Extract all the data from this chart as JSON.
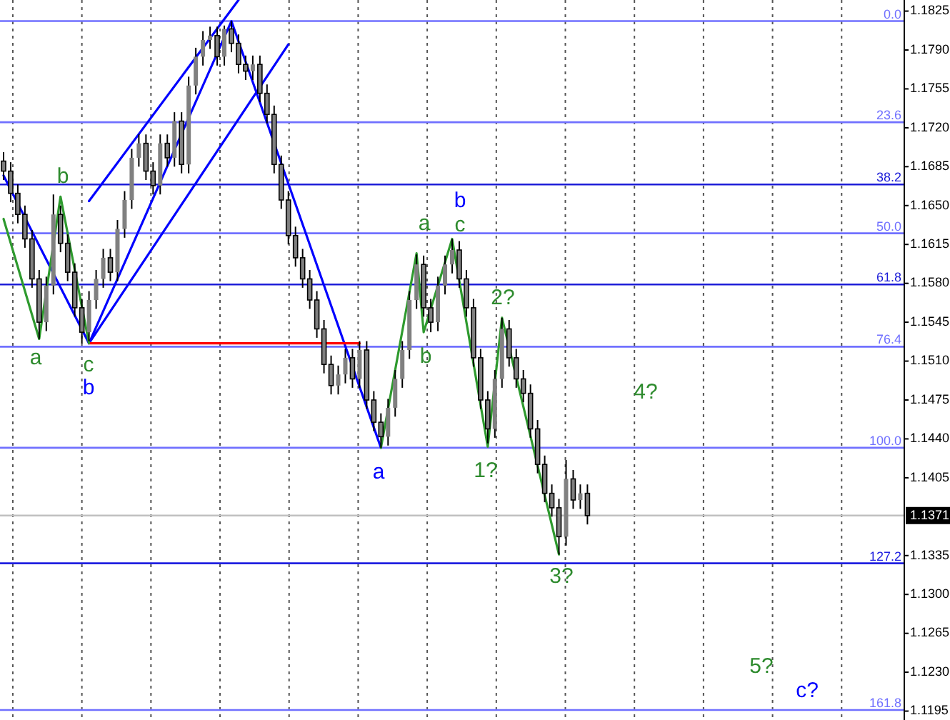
{
  "chart_data": {
    "type": "candlestick",
    "color": "#808080",
    "tick_labels": "y",
    "ylim": [
      1.1187,
      1.1835
    ],
    "yticks": [
      {
        "value": 1.1825,
        "label": "1.1825"
      },
      {
        "value": 1.179,
        "label": "1.1790"
      },
      {
        "value": 1.1755,
        "label": "1.1755"
      },
      {
        "value": 1.172,
        "label": "1.1720"
      },
      {
        "value": 1.1685,
        "label": "1.1685"
      },
      {
        "value": 1.165,
        "label": "1.1650"
      },
      {
        "value": 1.1615,
        "label": "1.1615"
      },
      {
        "value": 1.158,
        "label": "1.1580"
      },
      {
        "value": 1.1545,
        "label": "1.1545"
      },
      {
        "value": 1.151,
        "label": "1.1510"
      },
      {
        "value": 1.1475,
        "label": "1.1475"
      },
      {
        "value": 1.144,
        "label": "1.1440"
      },
      {
        "value": 1.1405,
        "label": "1.1405"
      },
      {
        "value": 1.1335,
        "label": "1.1335"
      },
      {
        "value": 1.13,
        "label": "1.1300"
      },
      {
        "value": 1.1265,
        "label": "1.1265"
      },
      {
        "value": 1.123,
        "label": "1.1230"
      },
      {
        "value": 1.1195,
        "label": "1.1195"
      }
    ],
    "grid": "x",
    "categories": [
      null,
      null,
      null,
      null,
      null,
      null,
      null,
      null,
      null,
      null,
      null,
      null,
      null,
      null,
      null,
      null,
      null,
      null,
      null,
      null,
      null,
      null,
      null,
      null,
      null,
      null,
      null,
      null,
      null,
      null,
      null,
      null,
      null,
      null,
      null,
      null,
      null,
      null,
      null,
      null,
      null,
      null,
      null,
      null,
      null,
      null,
      null,
      null,
      null,
      null,
      null,
      null,
      null,
      null,
      null,
      null,
      null,
      null,
      null,
      null,
      null,
      null,
      null,
      null,
      null,
      null,
      null,
      null,
      null,
      null,
      null,
      null,
      null,
      null,
      null,
      null,
      null,
      null,
      null,
      null,
      null,
      null,
      null,
      null,
      null,
      null,
      null,
      null,
      null,
      null,
      null,
      null,
      null,
      null,
      null,
      null,
      null,
      null,
      null,
      null,
      null,
      null,
      null,
      null,
      null,
      null,
      null,
      null,
      null,
      null,
      null,
      null,
      null,
      null,
      null,
      null,
      null,
      null,
      null,
      null,
      null,
      null,
      null,
      null,
      null,
      null,
      null
    ],
    "ohlc": [
      [
        1.169,
        1.1698,
        1.1673,
        1.1681
      ],
      [
        1.1681,
        1.1689,
        1.1653,
        1.1661
      ],
      [
        1.1661,
        1.1669,
        1.1634,
        1.1642
      ],
      [
        1.1642,
        1.165,
        1.1612,
        1.162
      ],
      [
        1.162,
        1.1628,
        1.1576,
        1.1584
      ],
      [
        1.1584,
        1.1592,
        1.153,
        1.1545
      ],
      [
        1.1545,
        1.1586,
        1.1537,
        1.1578
      ],
      [
        1.1578,
        1.166,
        1.157,
        1.1642
      ],
      [
        1.1642,
        1.165,
        1.1608,
        1.1616
      ],
      [
        1.1616,
        1.1624,
        1.1582,
        1.159
      ],
      [
        1.159,
        1.1598,
        1.155,
        1.1558
      ],
      [
        1.1558,
        1.1566,
        1.1526,
        1.1536
      ],
      [
        1.1536,
        1.1573,
        1.1528,
        1.1565
      ],
      [
        1.1565,
        1.1592,
        1.1557,
        1.1584
      ],
      [
        1.1584,
        1.1611,
        1.1576,
        1.1603
      ],
      [
        1.1603,
        1.1611,
        1.1582,
        1.159
      ],
      [
        1.159,
        1.1637,
        1.1582,
        1.1629
      ],
      [
        1.1629,
        1.1663,
        1.1621,
        1.1655
      ],
      [
        1.1655,
        1.1701,
        1.1647,
        1.1693
      ],
      [
        1.1693,
        1.1714,
        1.1685,
        1.1706
      ],
      [
        1.1706,
        1.1714,
        1.1673,
        1.1681
      ],
      [
        1.1681,
        1.1689,
        1.166,
        1.1668
      ],
      [
        1.1668,
        1.1714,
        1.166,
        1.1706
      ],
      [
        1.1706,
        1.1714,
        1.1685,
        1.1693
      ],
      [
        1.1693,
        1.1734,
        1.1685,
        1.1726
      ],
      [
        1.1726,
        1.1734,
        1.1679,
        1.1687
      ],
      [
        1.1687,
        1.1766,
        1.1679,
        1.1758
      ],
      [
        1.1758,
        1.1792,
        1.175,
        1.1784
      ],
      [
        1.1784,
        1.1807,
        1.1776,
        1.1799
      ],
      [
        1.1799,
        1.1811,
        1.1791,
        1.1803
      ],
      [
        1.1803,
        1.1811,
        1.1776,
        1.1784
      ],
      [
        1.1784,
        1.1812,
        1.1776,
        1.1809
      ],
      [
        1.1809,
        1.1816,
        1.1788,
        1.1796
      ],
      [
        1.1796,
        1.1804,
        1.1769,
        1.1777
      ],
      [
        1.1777,
        1.1785,
        1.1763,
        1.1771
      ],
      [
        1.1771,
        1.1785,
        1.1763,
        1.1777
      ],
      [
        1.1777,
        1.1785,
        1.1743,
        1.1751
      ],
      [
        1.1751,
        1.1759,
        1.1724,
        1.1732
      ],
      [
        1.1732,
        1.174,
        1.1679,
        1.1687
      ],
      [
        1.1687,
        1.1695,
        1.1647,
        1.1655
      ],
      [
        1.1655,
        1.1663,
        1.1615,
        1.1623
      ],
      [
        1.1623,
        1.1631,
        1.1595,
        1.1603
      ],
      [
        1.1603,
        1.1611,
        1.1576,
        1.1584
      ],
      [
        1.1584,
        1.1592,
        1.1557,
        1.1565
      ],
      [
        1.1565,
        1.1573,
        1.1531,
        1.1539
      ],
      [
        1.1539,
        1.1547,
        1.1499,
        1.1507
      ],
      [
        1.1507,
        1.1515,
        1.148,
        1.1488
      ],
      [
        1.1488,
        1.1506,
        1.148,
        1.1498
      ],
      [
        1.1498,
        1.1521,
        1.149,
        1.1513
      ],
      [
        1.1513,
        1.1521,
        1.1486,
        1.1494
      ],
      [
        1.1494,
        1.1528,
        1.1486,
        1.152
      ],
      [
        1.152,
        1.1528,
        1.1467,
        1.1475
      ],
      [
        1.1475,
        1.1483,
        1.1447,
        1.1455
      ],
      [
        1.1455,
        1.1463,
        1.1432,
        1.1442
      ],
      [
        1.1442,
        1.1476,
        1.1434,
        1.1468
      ],
      [
        1.1468,
        1.1502,
        1.146,
        1.1494
      ],
      [
        1.1494,
        1.1528,
        1.1486,
        1.152
      ],
      [
        1.152,
        1.1573,
        1.1512,
        1.1565
      ],
      [
        1.1565,
        1.1606,
        1.1557,
        1.1597
      ],
      [
        1.1597,
        1.1605,
        1.155,
        1.1558
      ],
      [
        1.1558,
        1.1566,
        1.1536,
        1.1545
      ],
      [
        1.1545,
        1.1586,
        1.1537,
        1.1578
      ],
      [
        1.1578,
        1.1605,
        1.157,
        1.1597
      ],
      [
        1.1597,
        1.162,
        1.1589,
        1.161
      ],
      [
        1.161,
        1.1618,
        1.1576,
        1.1584
      ],
      [
        1.1584,
        1.1592,
        1.155,
        1.1558
      ],
      [
        1.1558,
        1.1566,
        1.1505,
        1.1513
      ],
      [
        1.1513,
        1.1521,
        1.1467,
        1.1475
      ],
      [
        1.1475,
        1.1483,
        1.1436,
        1.1449
      ],
      [
        1.1449,
        1.1502,
        1.1441,
        1.1494
      ],
      [
        1.1494,
        1.1549,
        1.1486,
        1.1539
      ],
      [
        1.1539,
        1.1547,
        1.1505,
        1.1513
      ],
      [
        1.1513,
        1.1521,
        1.1486,
        1.1494
      ],
      [
        1.1494,
        1.1502,
        1.1473,
        1.1481
      ],
      [
        1.1481,
        1.1489,
        1.1441,
        1.1449
      ],
      [
        1.1449,
        1.1457,
        1.1409,
        1.1417
      ],
      [
        1.1417,
        1.1425,
        1.1383,
        1.1391
      ],
      [
        1.1391,
        1.1399,
        1.137,
        1.1378
      ],
      [
        1.1378,
        1.1386,
        1.1336,
        1.1352
      ],
      [
        1.1352,
        1.1421,
        1.1344,
        1.1404
      ],
      [
        1.1404,
        1.1412,
        1.1377,
        1.1385
      ],
      [
        1.1385,
        1.1399,
        1.1377,
        1.1391
      ],
      [
        1.1391,
        1.1399,
        1.1363,
        1.1371
      ],
      null,
      null,
      null,
      null,
      null,
      null,
      null,
      null,
      null,
      null,
      null,
      null,
      null,
      null,
      null,
      null,
      null,
      null,
      null,
      null,
      null,
      null,
      null,
      null,
      null,
      null,
      null,
      null,
      null,
      null,
      null,
      null,
      null,
      null,
      null,
      null,
      null,
      null,
      null,
      null,
      null,
      null,
      null,
      null
    ],
    "series": [
      {
        "type": "line",
        "color": "#0000ff",
        "values": [
          1.1677,
          null,
          null,
          null,
          null,
          null,
          null,
          null,
          null,
          null,
          null,
          null,
          1.1526,
          null,
          null,
          null,
          null,
          null,
          null,
          null,
          null,
          null,
          null,
          null,
          null,
          null,
          null,
          null,
          null,
          null,
          null,
          null,
          1.1816,
          null,
          null,
          null,
          null,
          null,
          null,
          null,
          null,
          null,
          null,
          null,
          null,
          null,
          null,
          null,
          null,
          null,
          null,
          null,
          null,
          1.1432,
          null,
          null,
          null,
          null,
          null,
          null,
          null,
          null,
          null,
          null,
          null,
          null,
          null,
          null,
          null,
          null,
          null,
          null,
          null,
          null,
          null,
          null,
          null,
          null,
          null,
          null,
          null,
          null,
          null,
          null,
          null,
          null,
          null,
          null,
          null,
          null,
          null,
          null,
          null,
          null,
          null,
          null,
          null,
          null,
          null,
          null,
          null,
          null,
          null,
          null,
          null,
          null,
          null,
          null,
          null,
          null,
          null,
          null,
          null,
          null,
          null,
          null,
          null,
          null,
          null,
          null,
          null,
          null,
          null,
          null,
          null,
          null,
          null
        ]
      },
      {
        "type": "line",
        "color": "#0000ff",
        "values": [
          null,
          null,
          null,
          null,
          null,
          null,
          null,
          null,
          null,
          null,
          null,
          null,
          1.1654,
          null,
          null,
          null,
          null,
          null,
          null,
          null,
          null,
          null,
          null,
          null,
          null,
          null,
          null,
          null,
          null,
          null,
          null,
          null,
          null,
          1.1835,
          null,
          null,
          null,
          null,
          null,
          null,
          null,
          null,
          null,
          null,
          null,
          null,
          null,
          null,
          null,
          null,
          null,
          null,
          null,
          null,
          null,
          null,
          null,
          null,
          null,
          null,
          null,
          null,
          null,
          null,
          null,
          null,
          null,
          null,
          null,
          null,
          null,
          null,
          null,
          null,
          null,
          null,
          null,
          null,
          null,
          null,
          null,
          null,
          null,
          null,
          null,
          null,
          null,
          null,
          null,
          null,
          null,
          null,
          null,
          null,
          null,
          null,
          null,
          null,
          null,
          null,
          null,
          null,
          null,
          null,
          null,
          null,
          null,
          null,
          null,
          null,
          null,
          null,
          null,
          null,
          null,
          null,
          null,
          null,
          null,
          null,
          null,
          null,
          null,
          null,
          null,
          null,
          null
        ]
      },
      {
        "type": "line",
        "color": "#0000ff",
        "values": [
          null,
          null,
          null,
          null,
          null,
          null,
          null,
          null,
          null,
          null,
          null,
          null,
          1.1526,
          null,
          null,
          null,
          null,
          null,
          null,
          null,
          null,
          null,
          null,
          null,
          null,
          null,
          null,
          null,
          null,
          null,
          null,
          null,
          null,
          null,
          null,
          null,
          null,
          null,
          null,
          null,
          1.1795,
          null,
          null,
          null,
          null,
          null,
          null,
          null,
          null,
          null,
          null,
          null,
          null,
          null,
          null,
          null,
          null,
          null,
          null,
          null,
          null,
          null,
          null,
          null,
          null,
          null,
          null,
          null,
          null,
          null,
          null,
          null,
          null,
          null,
          null,
          null,
          null,
          null,
          null,
          null,
          null,
          null,
          null,
          null,
          null,
          null,
          null,
          null,
          null,
          null,
          null,
          null,
          null,
          null,
          null,
          null,
          null,
          null,
          null,
          null,
          null,
          null,
          null,
          null,
          null,
          null,
          null,
          null,
          null,
          null,
          null,
          null,
          null,
          null,
          null,
          null,
          null,
          null,
          null,
          null,
          null,
          null,
          null,
          null,
          null,
          null,
          null
        ]
      },
      {
        "type": "line",
        "color": "#ff0000",
        "values": [
          null,
          null,
          null,
          null,
          null,
          null,
          null,
          null,
          null,
          null,
          null,
          null,
          1.1526,
          null,
          null,
          null,
          null,
          null,
          null,
          null,
          null,
          null,
          null,
          null,
          null,
          null,
          null,
          null,
          null,
          null,
          null,
          null,
          null,
          null,
          null,
          null,
          null,
          null,
          null,
          null,
          null,
          null,
          null,
          null,
          null,
          null,
          null,
          null,
          null,
          null,
          1.1526,
          null,
          null,
          null,
          null,
          null,
          null,
          null,
          null,
          null,
          null,
          null,
          null,
          null,
          null,
          null,
          null,
          null,
          null,
          null,
          null,
          null,
          null,
          null,
          null,
          null,
          null,
          null,
          null,
          null,
          null,
          null,
          null,
          null,
          null,
          null,
          null,
          null,
          null,
          null,
          null,
          null,
          null,
          null,
          null,
          null,
          null,
          null,
          null,
          null,
          null,
          null,
          null,
          null,
          null,
          null,
          null,
          null,
          null,
          null,
          null,
          null,
          null,
          null,
          null,
          null,
          null,
          null,
          null,
          null,
          null,
          null,
          null,
          null,
          null,
          null,
          null
        ]
      },
      {
        "type": "line",
        "color": "#2e9a2e",
        "values": [
          1.1638,
          null,
          null,
          null,
          null,
          1.153,
          null,
          null,
          1.1658,
          null,
          null,
          null,
          1.1526,
          null,
          null,
          null,
          null,
          null,
          null,
          null,
          null,
          null,
          null,
          null,
          null,
          null,
          null,
          null,
          null,
          null,
          null,
          null,
          null,
          null,
          null,
          null,
          null,
          null,
          null,
          null,
          null,
          null,
          null,
          null,
          null,
          null,
          null,
          null,
          null,
          null,
          null,
          null,
          null,
          null,
          null,
          null,
          null,
          null,
          null,
          null,
          null,
          null,
          null,
          null,
          null,
          null,
          null,
          null,
          null,
          null,
          null,
          null,
          null,
          null,
          null,
          null,
          null,
          null,
          null,
          null,
          null,
          null,
          null,
          null,
          null,
          null,
          null,
          null,
          null,
          null,
          null,
          null,
          null,
          null,
          null,
          null,
          null,
          null,
          null,
          null,
          null,
          null,
          null,
          null,
          null,
          null,
          null,
          null,
          null,
          null,
          null,
          null,
          null,
          null,
          null,
          null,
          null,
          null,
          null,
          null,
          null,
          null,
          null,
          null,
          null,
          null,
          null
        ]
      },
      {
        "type": "line",
        "color": "#2e9a2e",
        "values": [
          null,
          null,
          null,
          null,
          null,
          null,
          null,
          null,
          null,
          null,
          null,
          null,
          null,
          null,
          null,
          null,
          null,
          null,
          null,
          null,
          null,
          null,
          null,
          null,
          null,
          null,
          null,
          null,
          null,
          null,
          null,
          null,
          null,
          null,
          null,
          null,
          null,
          null,
          null,
          null,
          null,
          null,
          null,
          null,
          null,
          null,
          null,
          null,
          null,
          null,
          null,
          null,
          null,
          1.1432,
          null,
          null,
          null,
          null,
          1.1607,
          1.1536,
          null,
          null,
          null,
          1.162,
          null,
          null,
          null,
          null,
          1.1433,
          null,
          1.1549,
          null,
          null,
          null,
          null,
          null,
          null,
          null,
          1.1336,
          null,
          null,
          null,
          null,
          null,
          null,
          null,
          null,
          null,
          null,
          null,
          null,
          null,
          null,
          null,
          null,
          null,
          null,
          null,
          null,
          null,
          null,
          null,
          null,
          null,
          null,
          null,
          null,
          null,
          null,
          null,
          null,
          null,
          null,
          null,
          null,
          null,
          null,
          null,
          null,
          null,
          null,
          null,
          null,
          null,
          null,
          null,
          null
        ]
      }
    ],
    "ref_lines": [
      {
        "axis": "y",
        "value": 1.1816,
        "color": "#7070ff"
      },
      {
        "axis": "y",
        "value": 1.1725,
        "color": "#7070ff"
      },
      {
        "axis": "y",
        "value": 1.1669,
        "color": "#1c1cd8"
      },
      {
        "axis": "y",
        "value": 1.1625,
        "color": "#7070ff"
      },
      {
        "axis": "y",
        "value": 1.1579,
        "color": "#1c1cd8"
      },
      {
        "axis": "y",
        "value": 1.1523,
        "color": "#7070ff"
      },
      {
        "axis": "y",
        "value": 1.1432,
        "color": "#7070ff"
      },
      {
        "axis": "y",
        "value": 1.1328,
        "color": "#2020e0"
      },
      {
        "axis": "y",
        "value": 1.1196,
        "color": "#7070ff"
      },
      {
        "axis": "y",
        "value": 1.1371,
        "label": "1.1371",
        "color": "#c0c0c0"
      }
    ],
    "annotations": [
      "a",
      "b",
      "c",
      "b",
      "a",
      "a",
      "b",
      "c",
      "b",
      "1?",
      "2?",
      "3?",
      "4?",
      "5?",
      "c?",
      "0.0",
      "23.6",
      "38.2",
      "50.0",
      "61.8",
      "76.4",
      "100.0",
      "127.2",
      "161.8"
    ]
  }
}
